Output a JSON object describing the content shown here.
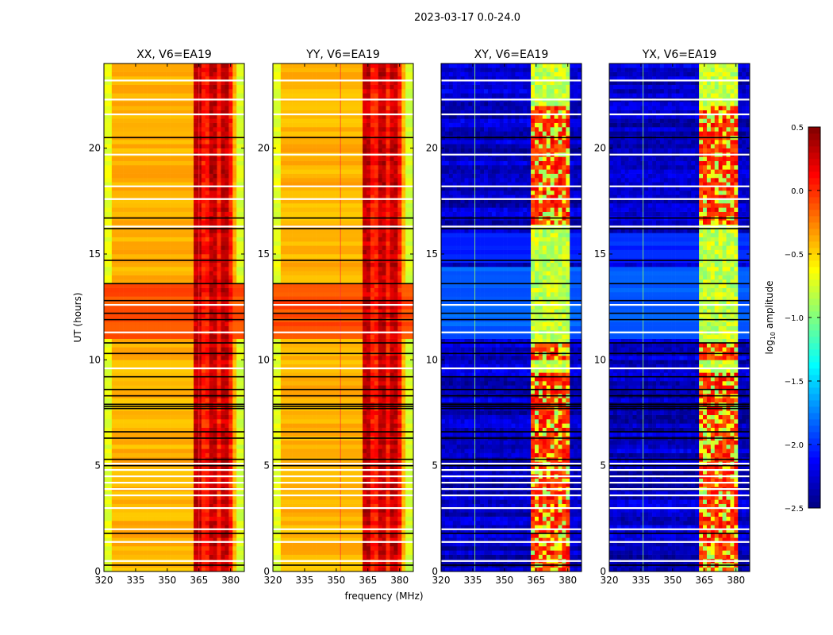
{
  "chart_data": {
    "type": "heatmap",
    "title": "2023-03-17 0.0-24.0",
    "xlabel": "frequency (MHz)",
    "ylabel": "UT (hours)",
    "xlim": [
      320,
      386.5
    ],
    "ylim": [
      0,
      24
    ],
    "xticks": [
      "320",
      "335",
      "350",
      "365",
      "380"
    ],
    "xtick_values": [
      320,
      335,
      350,
      365,
      380
    ],
    "yticks": [
      "0",
      "5",
      "10",
      "15",
      "20"
    ],
    "ytick_values": [
      0,
      5,
      10,
      15,
      20
    ],
    "panels": [
      {
        "title": "XX, V6=EA19",
        "kind": "parallel"
      },
      {
        "title": "YY, V6=EA19",
        "kind": "parallel"
      },
      {
        "title": "XY, V6=EA19",
        "kind": "cross"
      },
      {
        "title": "YX, V6=EA19",
        "kind": "cross"
      }
    ],
    "colorbar": {
      "label": "log10 amplitude",
      "label_main": "log",
      "label_sub": "10",
      "label_rest": " amplitude",
      "colormap": "jet",
      "range": [
        -2.5,
        0.5
      ],
      "ticks": [
        "0.5",
        "0.0",
        "−0.5",
        "−1.0",
        "−1.5",
        "−2.0",
        "−2.5"
      ],
      "tick_values": [
        0.5,
        0.0,
        -0.5,
        -1.0,
        -1.5,
        -2.0,
        -2.5
      ]
    },
    "levels": {
      "parallel_base": -0.4,
      "parallel_band": 0.3,
      "parallel_orange_hours": [
        10.9,
        13.7
      ],
      "cross_base": -2.3,
      "cross_band": -0.8,
      "cross_band_hot": 0.0,
      "band_mhz": [
        363,
        381
      ],
      "rfi_line_mhz": 336
    },
    "flagged_white_hours": [
      0.5,
      1.4,
      2.0,
      3.0,
      3.6,
      3.9,
      4.2,
      4.5,
      4.8,
      5.1,
      9.6,
      11.3,
      12.6,
      16.3,
      17.6,
      18.2,
      19.7,
      21.6,
      22.3,
      23.2
    ],
    "flagged_black_hours": [
      0.3,
      1.8,
      5.0,
      5.3,
      6.3,
      6.6,
      7.7,
      7.8,
      7.9,
      8.3,
      8.6,
      9.2,
      10.3,
      10.8,
      11.9,
      12.2,
      12.8,
      13.6,
      14.7,
      16.2,
      16.7,
      20.5
    ]
  }
}
